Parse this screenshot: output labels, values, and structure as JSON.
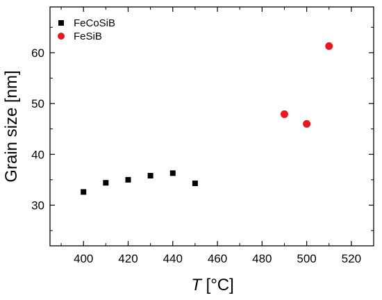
{
  "chart_data": {
    "type": "scatter",
    "xlabel_var": "T",
    "xlabel_unit": " [°C]",
    "ylabel": "Grain size [nm]",
    "xlim": [
      385,
      530
    ],
    "ylim": [
      22,
      69
    ],
    "xticks": [
      400,
      420,
      440,
      460,
      480,
      500,
      520
    ],
    "yticks": [
      30,
      40,
      50,
      60
    ],
    "grid": false,
    "legend_position": "top-left",
    "series": [
      {
        "name": "FeCoSiB",
        "marker": "square",
        "color": "#000000",
        "points": [
          {
            "x": 400,
            "y": 32.6
          },
          {
            "x": 410,
            "y": 34.4
          },
          {
            "x": 420,
            "y": 35.0
          },
          {
            "x": 430,
            "y": 35.8
          },
          {
            "x": 440,
            "y": 36.3
          },
          {
            "x": 450,
            "y": 34.3
          }
        ]
      },
      {
        "name": "FeSiB",
        "marker": "circle",
        "color": "#e8191c",
        "points": [
          {
            "x": 490,
            "y": 47.9
          },
          {
            "x": 500,
            "y": 46.0
          },
          {
            "x": 510,
            "y": 61.3
          }
        ]
      }
    ]
  }
}
